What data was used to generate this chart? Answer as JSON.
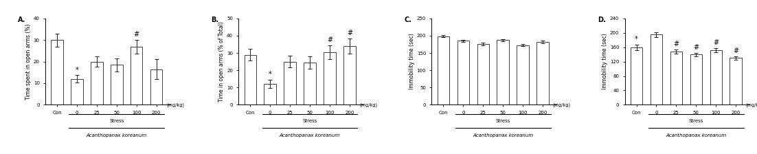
{
  "panels": [
    {
      "label": "A.",
      "ylabel": "Time spent in open arms (%)",
      "ylim": [
        0,
        40
      ],
      "yticks": [
        0,
        10,
        20,
        30,
        40
      ],
      "categories": [
        "Con",
        "0",
        "25",
        "50",
        "100",
        "200"
      ],
      "values": [
        30.0,
        12.0,
        20.0,
        18.5,
        27.0,
        16.5
      ],
      "errors": [
        3.0,
        1.8,
        2.5,
        3.0,
        3.2,
        4.5
      ],
      "sig_markers": {
        "1": "*",
        "4": "#"
      },
      "xlabel_stress": "Stress",
      "xlabel_species": "Acanthopanax koreanum",
      "mgkg_label": "(mg/kg)"
    },
    {
      "label": "B.",
      "ylabel": "Time in open arms (% of Total)",
      "ylim": [
        0,
        50
      ],
      "yticks": [
        0,
        10,
        20,
        30,
        40,
        50
      ],
      "categories": [
        "Con",
        "0",
        "25",
        "50",
        "100",
        "200"
      ],
      "values": [
        29.0,
        12.0,
        25.0,
        24.5,
        30.5,
        34.0
      ],
      "errors": [
        3.5,
        2.5,
        3.5,
        3.5,
        4.0,
        4.5
      ],
      "sig_markers": {
        "1": "*",
        "4": "#",
        "5": "#"
      },
      "xlabel_stress": "Stress",
      "xlabel_species": "Acanthopanax koreanum",
      "mgkg_label": "(mg/kg)"
    },
    {
      "label": "C.",
      "ylabel": "Immobility time (sec)",
      "ylim": [
        0,
        250
      ],
      "yticks": [
        0,
        50,
        100,
        150,
        200,
        250
      ],
      "categories": [
        "Con",
        "0",
        "25",
        "50",
        "100",
        "200"
      ],
      "values": [
        198.0,
        185.0,
        176.0,
        187.0,
        173.0,
        182.0
      ],
      "errors": [
        3.0,
        3.5,
        3.5,
        3.0,
        3.5,
        3.5
      ],
      "sig_markers": {},
      "xlabel_stress": "Stress",
      "xlabel_species": "Acanthopanax koreanum",
      "mgkg_label": "(mg/kg)"
    },
    {
      "label": "D.",
      "ylabel": "Immobility time (sec)",
      "ylim": [
        0,
        240
      ],
      "yticks": [
        0,
        40,
        80,
        120,
        160,
        200,
        240
      ],
      "categories": [
        "Con",
        "0",
        "25",
        "50",
        "100",
        "200"
      ],
      "values": [
        160.0,
        195.0,
        148.0,
        140.0,
        152.0,
        130.0
      ],
      "errors": [
        8.0,
        7.0,
        6.0,
        5.0,
        6.0,
        5.0
      ],
      "sig_markers": {
        "0": "*",
        "2": "#",
        "3": "#",
        "4": "#",
        "5": "#"
      },
      "xlabel_stress": "Stress",
      "xlabel_species": "Acanthopanax koreanum",
      "mgkg_label": "(mg/kg)"
    }
  ],
  "bar_color": "#ffffff",
  "bar_edgecolor": "#222222",
  "bar_width": 0.6,
  "errorbar_color": "#222222",
  "background_color": "#ffffff",
  "fontsize_ylabel": 5.5,
  "fontsize_tick": 5.0,
  "fontsize_panel_label": 7.0,
  "fontsize_sig": 7.0,
  "fontsize_xlabel": 5.0,
  "fontsize_species": 5.0
}
